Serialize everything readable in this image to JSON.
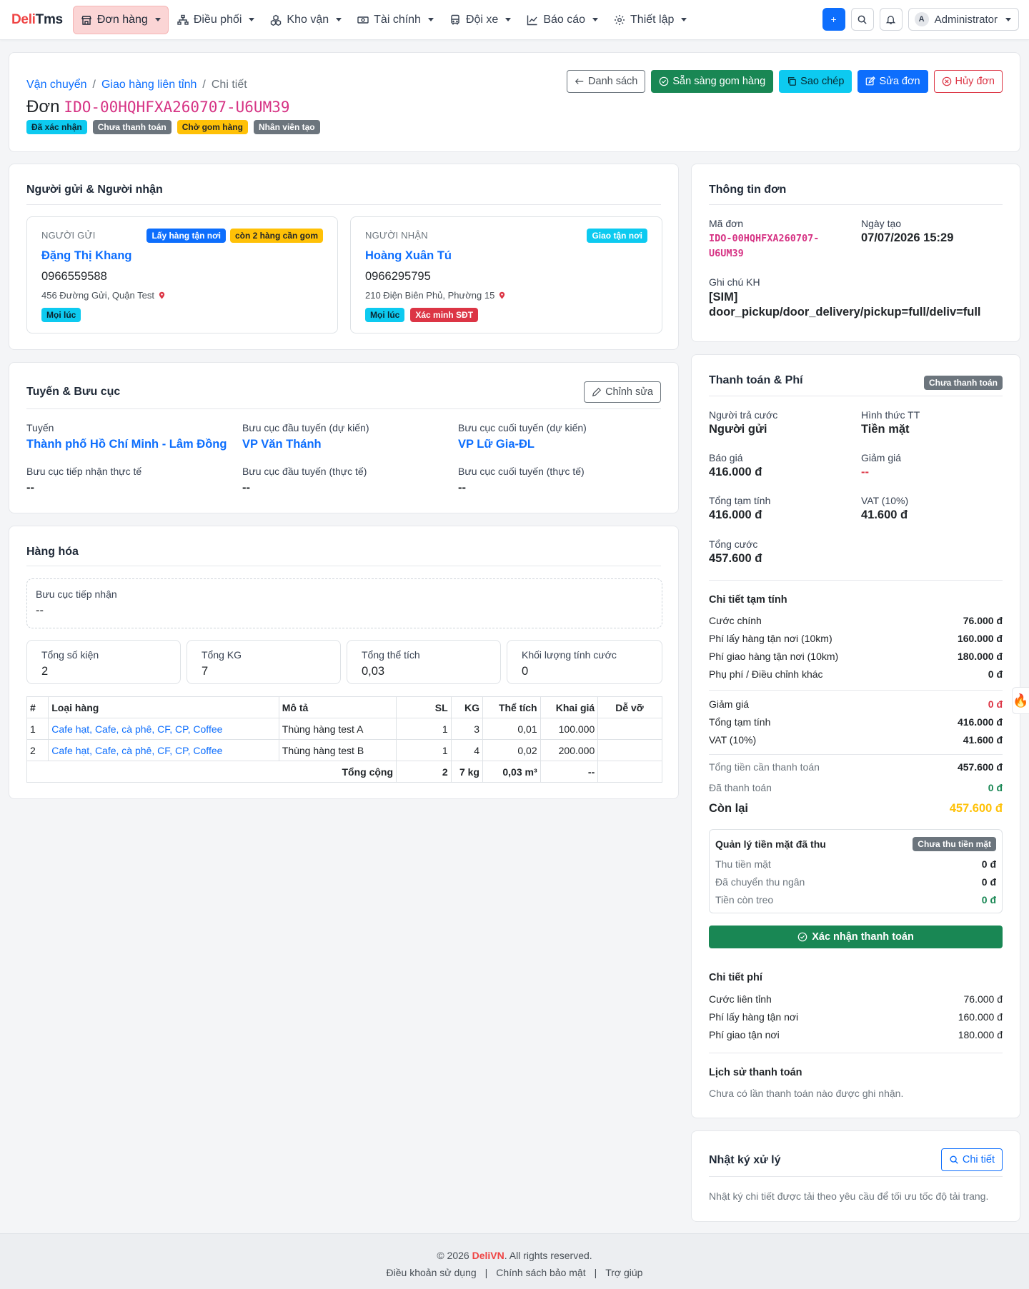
{
  "nav": {
    "brand_a": "Deli",
    "brand_b": "Tms",
    "items": [
      {
        "label": "Đơn hàng"
      },
      {
        "label": "Điều phối"
      },
      {
        "label": "Kho vận"
      },
      {
        "label": "Tài chính"
      },
      {
        "label": "Đội xe"
      },
      {
        "label": "Báo cáo"
      },
      {
        "label": "Thiết lập"
      }
    ],
    "add_label": "+",
    "user_initial": "A",
    "user_name": "Administrator"
  },
  "header": {
    "breadcrumb": [
      "Vận chuyển",
      "Giao hàng liên tỉnh",
      "Chi tiết"
    ],
    "title_prefix": "Đơn",
    "order_code": "IDO-00HQHFXA260707-U6UM39",
    "badges": [
      "Đã xác nhận",
      "Chưa thanh toán",
      "Chờ gom hàng",
      "Nhân viên tạo"
    ],
    "actions": {
      "list": "Danh sách",
      "ready": "Sẵn sàng gom hàng",
      "copy": "Sao chép",
      "edit": "Sửa đơn",
      "cancel": "Hủy đơn"
    }
  },
  "parties": {
    "title": "Người gửi & Người nhận",
    "sender": {
      "label": "NGƯỜI GỬI",
      "tags": [
        "Lấy hàng tận nơi",
        "còn 2 hàng cần gom"
      ],
      "name": "Đặng Thị Khang",
      "phone": "0966559588",
      "address": "456 Đường Gửi, Quận Test",
      "foot_tags": [
        "Mọi lúc"
      ]
    },
    "receiver": {
      "label": "NGƯỜI NHẬN",
      "tags": [
        "Giao tận nơi"
      ],
      "name": "Hoàng Xuân Tú",
      "phone": "0966295795",
      "address": "210 Điện Biên Phủ, Phường 15",
      "foot_tags": [
        "Mọi lúc",
        "Xác minh SĐT"
      ]
    }
  },
  "route": {
    "title": "Tuyến & Bưu cục",
    "edit_label": "Chỉnh sửa",
    "fields": [
      {
        "label": "Tuyến",
        "value": "Thành phố Hồ Chí Minh - Lâm Đồng"
      },
      {
        "label": "Bưu cục đầu tuyến (dự kiến)",
        "value": "VP Văn Thánh"
      },
      {
        "label": "Bưu cục cuối tuyến (dự kiến)",
        "value": "VP Lữ Gia-ĐL"
      },
      {
        "label": "Bưu cục tiếp nhận thực tế",
        "value": "--"
      },
      {
        "label": "Bưu cục đầu tuyến (thực tế)",
        "value": "--"
      },
      {
        "label": "Bưu cục cuối tuyến (thực tế)",
        "value": "--"
      }
    ]
  },
  "goods": {
    "title": "Hàng hóa",
    "office_label": "Bưu cục tiếp nhận",
    "office_value": "--",
    "stats": [
      {
        "label": "Tổng số kiện",
        "value": "2"
      },
      {
        "label": "Tổng KG",
        "value": "7"
      },
      {
        "label": "Tổng thể tích",
        "value": "0,03"
      },
      {
        "label": "Khối lượng tính cước",
        "value": "0"
      }
    ],
    "columns": [
      "#",
      "Loại hàng",
      "Mô tả",
      "SL",
      "KG",
      "Thể tích",
      "Khai giá",
      "Dễ vỡ"
    ],
    "rows": [
      {
        "no": "1",
        "type": "Cafe hạt, Cafe, cà phê, CF, CP, Coffee",
        "desc": "Thùng hàng test A",
        "qty": "1",
        "kg": "3",
        "vol": "0,01",
        "value": "100.000",
        "fragile": ""
      },
      {
        "no": "2",
        "type": "Cafe hạt, Cafe, cà phê, CF, CP, Coffee",
        "desc": "Thùng hàng test B",
        "qty": "1",
        "kg": "4",
        "vol": "0,02",
        "value": "200.000",
        "fragile": ""
      }
    ],
    "total": {
      "label": "Tổng cộng",
      "qty": "2",
      "kg": "7 kg",
      "vol": "0,03 m³",
      "value": "--"
    }
  },
  "order_info": {
    "title": "Thông tin đơn",
    "code_label": "Mã đơn",
    "code_line1": "IDO-00HQHFXA260707-",
    "code_line2": "U6UM39",
    "date_label": "Ngày tạo",
    "date_value": "07/07/2026 15:29",
    "note_label": "Ghi chú KH",
    "note_line1": "[SIM]",
    "note_line2": "door_pickup/door_delivery/pickup=full/deliv=full"
  },
  "payment": {
    "title": "Thanh toán & Phí",
    "status_badge": "Chưa thanh toán",
    "payer_label": "Người trả cước",
    "payer_value": "Người gửi",
    "method_label": "Hình thức TT",
    "method_value": "Tiền mặt",
    "quote_label": "Báo giá",
    "quote_value": "416.000 đ",
    "discount_label": "Giảm giá",
    "discount_value": "--",
    "subtotal_label": "Tổng tạm tính",
    "subtotal_value": "416.000 đ",
    "vat_label": "VAT (10%)",
    "vat_value": "41.600 đ",
    "total_label": "Tổng cước",
    "total_value": "457.600 đ",
    "breakdown_title": "Chi tiết tạm tính",
    "breakdown": [
      {
        "label": "Cước chính",
        "value": "76.000 đ"
      },
      {
        "label": "Phí lấy hàng tận nơi (10km)",
        "value": "160.000 đ"
      },
      {
        "label": "Phí giao hàng tận nơi (10km)",
        "value": "180.000 đ"
      },
      {
        "label": "Phụ phí / Điều chỉnh khác",
        "value": "0 đ"
      }
    ],
    "summary": [
      {
        "label": "Giảm giá",
        "value": "0 đ"
      },
      {
        "label": "Tổng tạm tính",
        "value": "416.000 đ"
      },
      {
        "label": "VAT (10%)",
        "value": "41.600 đ"
      }
    ],
    "to_pay_label": "Tổng tiền cần thanh toán",
    "to_pay_value": "457.600 đ",
    "paid_label": "Đã thanh toán",
    "paid_value": "0 đ",
    "remain_label": "Còn lại",
    "remain_value": "457.600 đ",
    "cash": {
      "title": "Quản lý tiền mặt đã thu",
      "badge": "Chưa thu tiền mặt",
      "rows": [
        {
          "label": "Thu tiền mặt",
          "value": "0 đ"
        },
        {
          "label": "Đã chuyển thu ngân",
          "value": "0 đ"
        },
        {
          "label": "Tiền còn treo",
          "value": "0 đ"
        }
      ]
    },
    "confirm_label": "Xác nhận thanh toán",
    "fees_title": "Chi tiết phí",
    "fees": [
      {
        "label": "Cước liên tỉnh",
        "value": "76.000 đ"
      },
      {
        "label": "Phí lấy hàng tận nơi",
        "value": "160.000 đ"
      },
      {
        "label": "Phí giao tận nơi",
        "value": "180.000 đ"
      }
    ],
    "history_title": "Lịch sử thanh toán",
    "history_empty": "Chưa có lần thanh toán nào được ghi nhận."
  },
  "log": {
    "title": "Nhật ký xử lý",
    "detail_label": "Chi tiết",
    "note": "Nhật ký chi tiết được tải theo yêu cầu để tối ưu tốc độ tải trang."
  },
  "footer": {
    "copy_prefix": "© 2026",
    "brand": "DeliVN",
    "copy_suffix": ". All rights reserved.",
    "links": [
      "Điều khoản sử dụng",
      "Chính sách bảo mật",
      "Trợ giúp"
    ]
  },
  "colors": {
    "primary": "#0d6efd",
    "success": "#198754",
    "danger": "#dc3545",
    "warning": "#ffc107",
    "info": "#0dcaf0",
    "code_pink": "#d63384"
  }
}
